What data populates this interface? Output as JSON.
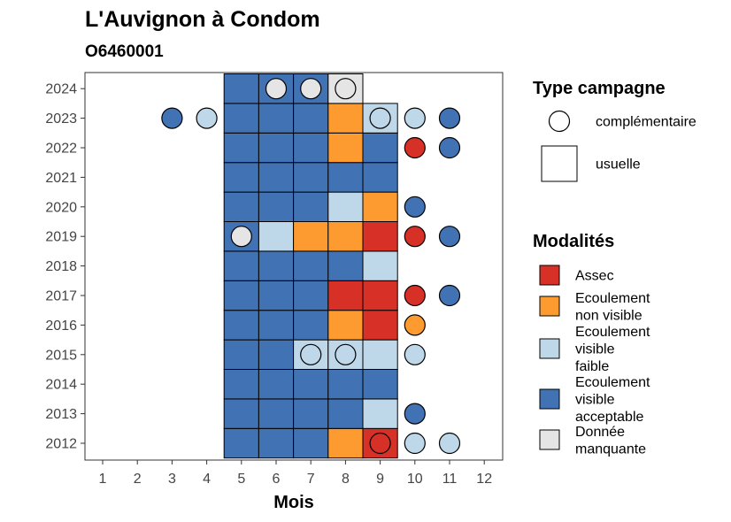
{
  "chart_data": {
    "type": "heatmap",
    "title": "L'Auvignon à Condom",
    "subtitle": "O6460001",
    "xlabel": "Mois",
    "ylabel": "",
    "x_ticks": [
      1,
      2,
      3,
      4,
      5,
      6,
      7,
      8,
      9,
      10,
      11,
      12
    ],
    "y_ticks": [
      2012,
      2013,
      2014,
      2015,
      2016,
      2017,
      2018,
      2019,
      2020,
      2021,
      2022,
      2023,
      2024
    ],
    "grid": false,
    "legend_placement": "right",
    "legend_shape": {
      "title": "Type campagne",
      "items": [
        {
          "label": "complémentaire",
          "shape": "circle"
        },
        {
          "label": "usuelle",
          "shape": "square"
        }
      ]
    },
    "legend_color": {
      "title": "Modalités",
      "items": [
        {
          "key": "assec",
          "lines": [
            "Assec"
          ],
          "color": "#d73027"
        },
        {
          "key": "nonvis",
          "lines": [
            "Ecoulement",
            "non visible"
          ],
          "color": "#fd9b30"
        },
        {
          "key": "faible",
          "lines": [
            "Ecoulement",
            "visible",
            "faible"
          ],
          "color": "#bfd8e9"
        },
        {
          "key": "accept",
          "lines": [
            "Ecoulement",
            "visible",
            "acceptable"
          ],
          "color": "#4172b4"
        },
        {
          "key": "manq",
          "lines": [
            "Donnée",
            "manquante"
          ],
          "color": "#e5e5e5"
        }
      ]
    },
    "usuelle": {
      "2024": {
        "5": "accept",
        "6": "accept",
        "7": "accept",
        "8": "manq"
      },
      "2023": {
        "5": "accept",
        "6": "accept",
        "7": "accept",
        "8": "nonvis",
        "9": "faible"
      },
      "2022": {
        "5": "accept",
        "6": "accept",
        "7": "accept",
        "8": "nonvis",
        "9": "accept"
      },
      "2021": {
        "5": "accept",
        "6": "accept",
        "7": "accept",
        "8": "accept",
        "9": "accept"
      },
      "2020": {
        "5": "accept",
        "6": "accept",
        "7": "accept",
        "8": "faible",
        "9": "nonvis"
      },
      "2019": {
        "5": "accept",
        "6": "faible",
        "7": "nonvis",
        "8": "nonvis",
        "9": "assec"
      },
      "2018": {
        "5": "accept",
        "6": "accept",
        "7": "accept",
        "8": "accept",
        "9": "faible"
      },
      "2017": {
        "5": "accept",
        "6": "accept",
        "7": "accept",
        "8": "assec",
        "9": "assec"
      },
      "2016": {
        "5": "accept",
        "6": "accept",
        "7": "accept",
        "8": "nonvis",
        "9": "assec"
      },
      "2015": {
        "5": "accept",
        "6": "accept",
        "7": "faible",
        "8": "faible",
        "9": "faible"
      },
      "2014": {
        "5": "accept",
        "6": "accept",
        "7": "accept",
        "8": "accept",
        "9": "accept"
      },
      "2013": {
        "5": "accept",
        "6": "accept",
        "7": "accept",
        "8": "accept",
        "9": "faible"
      },
      "2012": {
        "5": "accept",
        "6": "accept",
        "7": "accept",
        "8": "nonvis",
        "9": "assec"
      }
    },
    "complementaire": [
      {
        "year": 2024,
        "month": 6,
        "status": "manq"
      },
      {
        "year": 2024,
        "month": 7,
        "status": "manq"
      },
      {
        "year": 2024,
        "month": 8,
        "status": "manq"
      },
      {
        "year": 2023,
        "month": 3,
        "status": "accept"
      },
      {
        "year": 2023,
        "month": 4,
        "status": "faible"
      },
      {
        "year": 2023,
        "month": 9,
        "status": "faible"
      },
      {
        "year": 2023,
        "month": 10,
        "status": "faible"
      },
      {
        "year": 2023,
        "month": 11,
        "status": "accept"
      },
      {
        "year": 2022,
        "month": 10,
        "status": "assec"
      },
      {
        "year": 2022,
        "month": 11,
        "status": "accept"
      },
      {
        "year": 2020,
        "month": 10,
        "status": "accept"
      },
      {
        "year": 2019,
        "month": 5,
        "status": "manq"
      },
      {
        "year": 2019,
        "month": 10,
        "status": "assec"
      },
      {
        "year": 2019,
        "month": 11,
        "status": "accept"
      },
      {
        "year": 2017,
        "month": 10,
        "status": "assec"
      },
      {
        "year": 2017,
        "month": 11,
        "status": "accept"
      },
      {
        "year": 2016,
        "month": 10,
        "status": "nonvis"
      },
      {
        "year": 2015,
        "month": 7,
        "status": "faible"
      },
      {
        "year": 2015,
        "month": 8,
        "status": "faible"
      },
      {
        "year": 2015,
        "month": 10,
        "status": "faible"
      },
      {
        "year": 2013,
        "month": 10,
        "status": "accept"
      },
      {
        "year": 2012,
        "month": 9,
        "status": "assec"
      },
      {
        "year": 2012,
        "month": 10,
        "status": "faible"
      },
      {
        "year": 2012,
        "month": 11,
        "status": "faible"
      }
    ]
  }
}
